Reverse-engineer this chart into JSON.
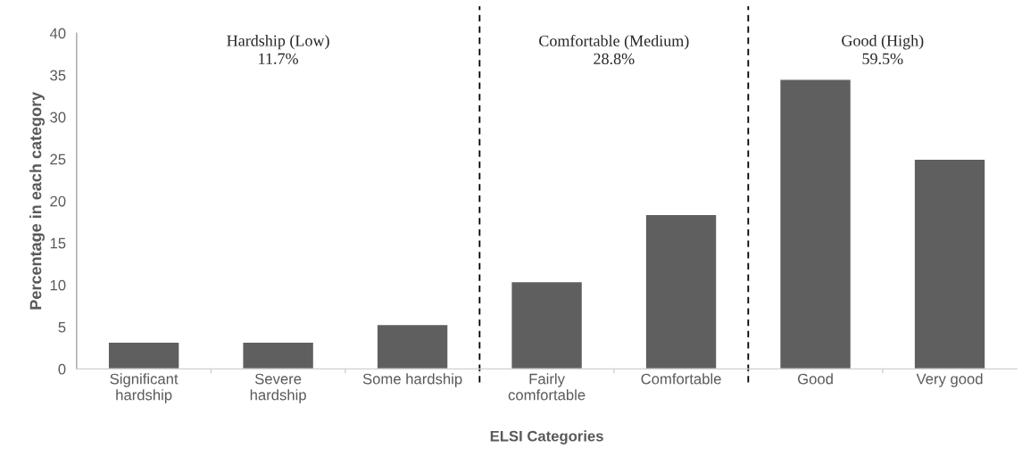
{
  "chart_data": {
    "type": "bar",
    "categories": [
      "Significant\nhardship",
      "Severe\nhardship",
      "Some hardship",
      "Fairly\ncomfortable",
      "Comfortable",
      "Good",
      "Very good"
    ],
    "values": [
      3.2,
      3.2,
      5.3,
      10.4,
      18.4,
      34.5,
      25.0
    ],
    "color": "#5f5f5f",
    "xlabel": "ELSI Categories",
    "ylabel": "Percentage in each category",
    "ylim": [
      0,
      40
    ],
    "yticks": [
      0,
      5,
      10,
      15,
      20,
      25,
      30,
      35,
      40
    ],
    "grid": false,
    "legend": false,
    "annotations": [
      "Hardship (Low)\n11.7%",
      "Comfortable (Medium)\n28.8%",
      "Good (High)\n59.5%"
    ]
  }
}
